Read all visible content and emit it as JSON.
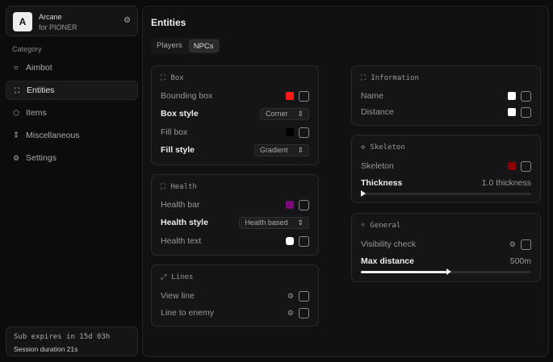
{
  "app": {
    "logo_letter": "A",
    "name": "Arcane",
    "subtitle": "for PIONER"
  },
  "sidebar": {
    "category_label": "Category",
    "items": [
      {
        "label": "Aimbot",
        "icon": "crosshair-icon"
      },
      {
        "label": "Entities",
        "icon": "entity-icon",
        "active": true
      },
      {
        "label": "Items",
        "icon": "box-icon"
      },
      {
        "label": "Miscellaneous",
        "icon": "misc-icon"
      },
      {
        "label": "Settings",
        "icon": "gear-icon"
      }
    ]
  },
  "subscription": {
    "expires": "Sub expires in 15d 03h",
    "session": "Session duration 21s"
  },
  "main": {
    "title": "Entities",
    "tabs": [
      "Players",
      "NPCs"
    ],
    "active_tab": "NPCs"
  },
  "box": {
    "title": "Box",
    "bounding_box": "Bounding box",
    "bounding_color": "#ff1a1a",
    "box_style": "Box style",
    "box_style_value": "Corner",
    "fill_box": "Fill box",
    "fill_color": "#000000",
    "fill_style": "Fill style",
    "fill_style_value": "Gradient"
  },
  "health": {
    "title": "Health",
    "health_bar": "Health bar",
    "health_bar_color": "#7a0a7a",
    "health_style": "Health style",
    "health_style_value": "Health based",
    "health_text": "Health text",
    "health_text_color": "#ffffff"
  },
  "lines": {
    "title": "Lines",
    "view_line": "View line",
    "line_to_enemy": "Line to enemy"
  },
  "information": {
    "title": "Information",
    "name": "Name",
    "name_color": "#ffffff",
    "distance": "Distance",
    "distance_color": "#ffffff"
  },
  "skeleton": {
    "title": "Skeleton",
    "skeleton": "Skeleton",
    "skeleton_color": "#8b0000",
    "thickness": "Thickness",
    "thickness_value": "1.0 thickness",
    "thickness_fraction": 0
  },
  "general": {
    "title": "General",
    "visibility_check": "Visibility check",
    "max_distance": "Max distance",
    "max_distance_value": "500m",
    "max_distance_fraction": 0.5
  }
}
